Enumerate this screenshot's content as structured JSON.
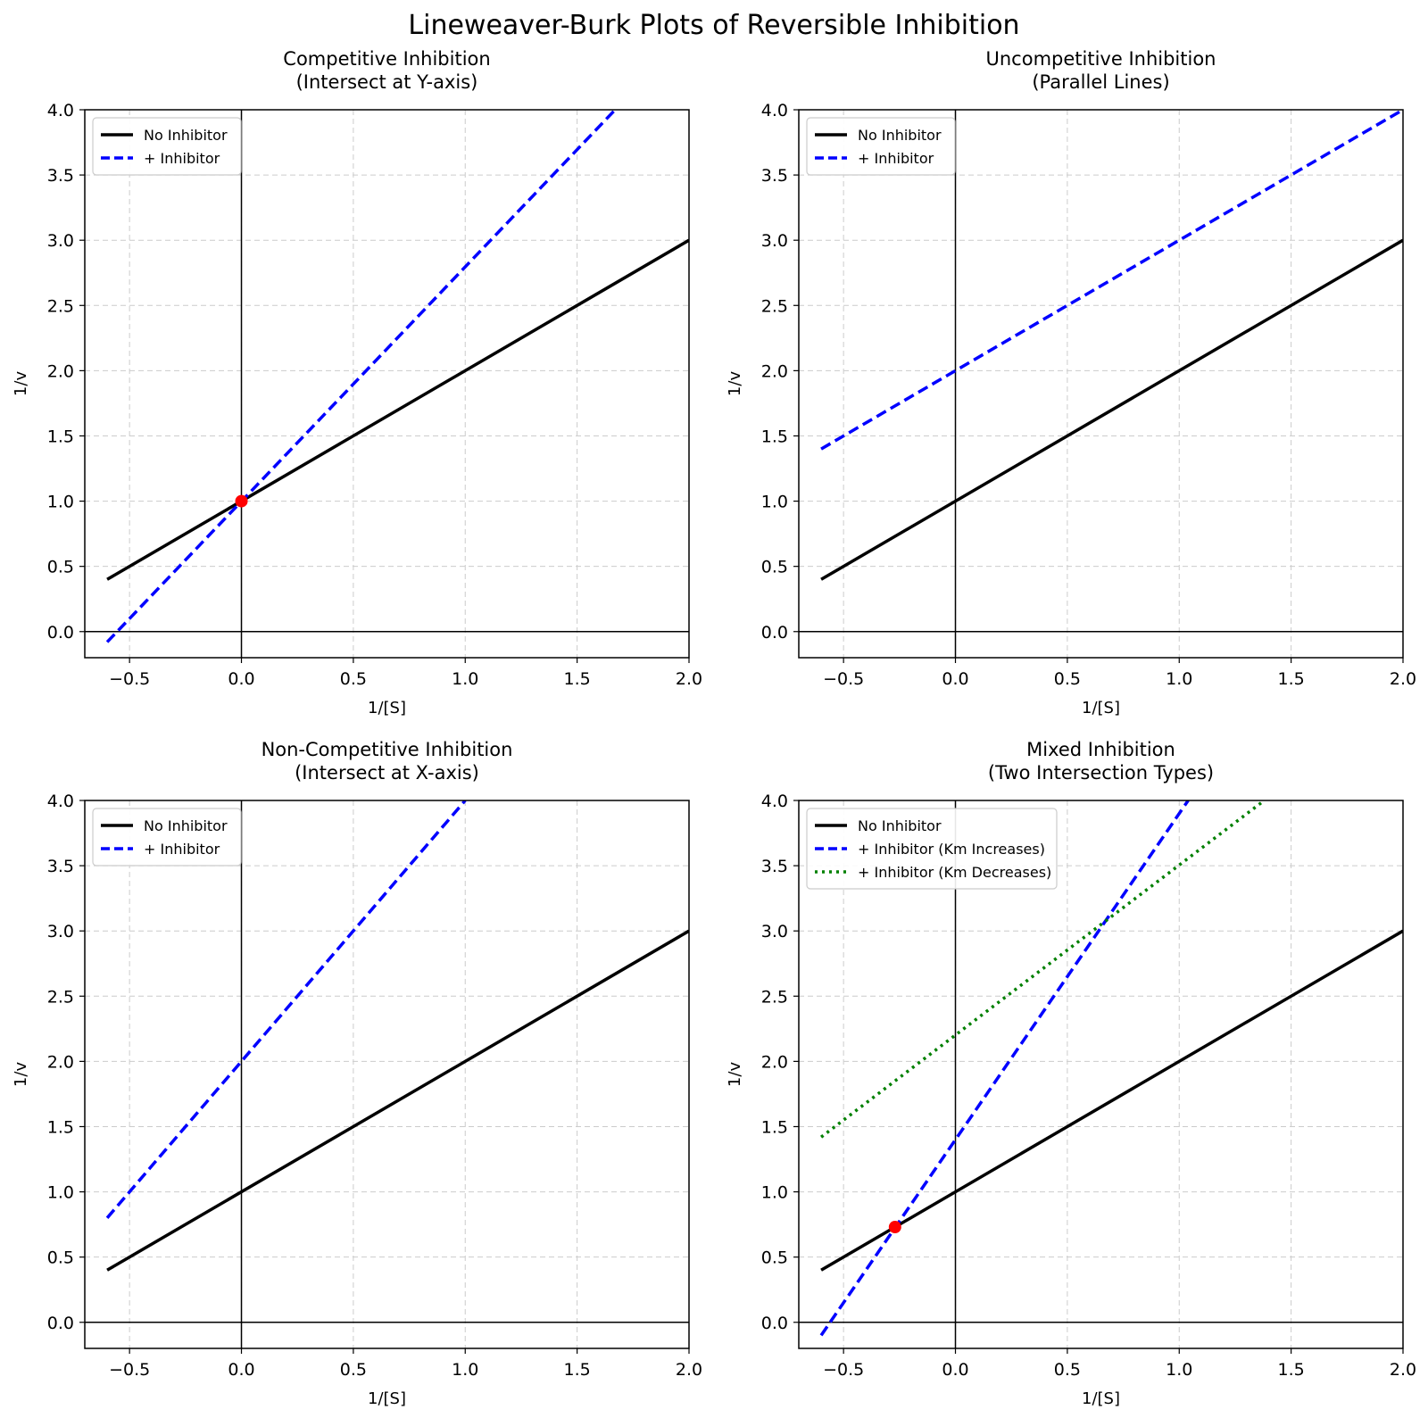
{
  "figure": {
    "title": "Lineweaver-Burk Plots of Reversible Inhibition"
  },
  "chart_data": [
    {
      "type": "line",
      "title_line1": "Competitive Inhibition",
      "title_line2": "(Intersect at Y-axis)",
      "xlabel": "1/[S]",
      "ylabel": "1/v",
      "xlim": [
        -0.7,
        2.0
      ],
      "ylim": [
        -0.2,
        4.0
      ],
      "xticks": [
        "−0.5",
        "0.0",
        "0.5",
        "1.0",
        "1.5",
        "2.0"
      ],
      "xtick_values": [
        -0.5,
        0,
        0.5,
        1.0,
        1.5,
        2.0
      ],
      "yticks": [
        "0.0",
        "0.5",
        "1.0",
        "1.5",
        "2.0",
        "2.5",
        "3.0",
        "3.5",
        "4.0"
      ],
      "ytick_values": [
        0,
        0.5,
        1.0,
        1.5,
        2.0,
        2.5,
        3.0,
        3.5,
        4.0
      ],
      "grid": true,
      "legend_position": "upper-left",
      "series": [
        {
          "name": "No Inhibitor",
          "color": "#000000",
          "style": "solid",
          "x": [
            -0.6,
            2.0
          ],
          "y": [
            0.4,
            3.0
          ]
        },
        {
          "name": "+ Inhibitor",
          "color": "#0000ff",
          "style": "dashed",
          "x": [
            -0.6,
            1.67
          ],
          "y": [
            -0.08,
            4.0
          ]
        }
      ],
      "markers": [
        {
          "x": 0,
          "y": 1.0,
          "color": "#ff0000"
        }
      ]
    },
    {
      "type": "line",
      "title_line1": "Uncompetitive Inhibition",
      "title_line2": "(Parallel Lines)",
      "xlabel": "1/[S]",
      "ylabel": "1/v",
      "xlim": [
        -0.7,
        2.0
      ],
      "ylim": [
        -0.2,
        4.0
      ],
      "xticks": [
        "−0.5",
        "0.0",
        "0.5",
        "1.0",
        "1.5",
        "2.0"
      ],
      "xtick_values": [
        -0.5,
        0,
        0.5,
        1.0,
        1.5,
        2.0
      ],
      "yticks": [
        "0.0",
        "0.5",
        "1.0",
        "1.5",
        "2.0",
        "2.5",
        "3.0",
        "3.5",
        "4.0"
      ],
      "ytick_values": [
        0,
        0.5,
        1.0,
        1.5,
        2.0,
        2.5,
        3.0,
        3.5,
        4.0
      ],
      "grid": true,
      "legend_position": "upper-left",
      "series": [
        {
          "name": "No Inhibitor",
          "color": "#000000",
          "style": "solid",
          "x": [
            -0.6,
            2.0
          ],
          "y": [
            0.4,
            3.0
          ]
        },
        {
          "name": "+ Inhibitor",
          "color": "#0000ff",
          "style": "dashed",
          "x": [
            -0.6,
            2.0
          ],
          "y": [
            1.4,
            4.0
          ]
        }
      ],
      "markers": []
    },
    {
      "type": "line",
      "title_line1": "Non-Competitive Inhibition",
      "title_line2": "(Intersect at X-axis)",
      "xlabel": "1/[S]",
      "ylabel": "1/v",
      "xlim": [
        -0.7,
        2.0
      ],
      "ylim": [
        -0.2,
        4.0
      ],
      "xticks": [
        "−0.5",
        "0.0",
        "0.5",
        "1.0",
        "1.5",
        "2.0"
      ],
      "xtick_values": [
        -0.5,
        0,
        0.5,
        1.0,
        1.5,
        2.0
      ],
      "yticks": [
        "0.0",
        "0.5",
        "1.0",
        "1.5",
        "2.0",
        "2.5",
        "3.0",
        "3.5",
        "4.0"
      ],
      "ytick_values": [
        0,
        0.5,
        1.0,
        1.5,
        2.0,
        2.5,
        3.0,
        3.5,
        4.0
      ],
      "grid": true,
      "legend_position": "upper-left",
      "series": [
        {
          "name": "No Inhibitor",
          "color": "#000000",
          "style": "solid",
          "x": [
            -0.6,
            2.0
          ],
          "y": [
            0.4,
            3.0
          ]
        },
        {
          "name": "+ Inhibitor",
          "color": "#0000ff",
          "style": "dashed",
          "x": [
            -0.6,
            1.0
          ],
          "y": [
            0.8,
            4.0
          ]
        }
      ],
      "markers": []
    },
    {
      "type": "line",
      "title_line1": "Mixed Inhibition",
      "title_line2": "(Two Intersection Types)",
      "xlabel": "1/[S]",
      "ylabel": "1/v",
      "xlim": [
        -0.7,
        2.0
      ],
      "ylim": [
        -0.2,
        4.0
      ],
      "xticks": [
        "−0.5",
        "0.0",
        "0.5",
        "1.0",
        "1.5",
        "2.0"
      ],
      "xtick_values": [
        -0.5,
        0,
        0.5,
        1.0,
        1.5,
        2.0
      ],
      "yticks": [
        "0.0",
        "0.5",
        "1.0",
        "1.5",
        "2.0",
        "2.5",
        "3.0",
        "3.5",
        "4.0"
      ],
      "ytick_values": [
        0,
        0.5,
        1.0,
        1.5,
        2.0,
        2.5,
        3.0,
        3.5,
        4.0
      ],
      "grid": true,
      "legend_position": "upper-left",
      "series": [
        {
          "name": "No Inhibitor",
          "color": "#000000",
          "style": "solid",
          "x": [
            -0.6,
            2.0
          ],
          "y": [
            0.4,
            3.0
          ]
        },
        {
          "name": "+ Inhibitor (Km Increases)",
          "color": "#0000ff",
          "style": "dashed",
          "x": [
            -0.6,
            1.04
          ],
          "y": [
            -0.1,
            4.0
          ]
        },
        {
          "name": "+ Inhibitor (Km Decreases)",
          "color": "#008000",
          "style": "dotted",
          "x": [
            -0.6,
            1.38
          ],
          "y": [
            1.42,
            4.0
          ]
        }
      ],
      "markers": [
        {
          "x": -0.27,
          "y": 0.73,
          "color": "#ff0000"
        }
      ]
    }
  ]
}
